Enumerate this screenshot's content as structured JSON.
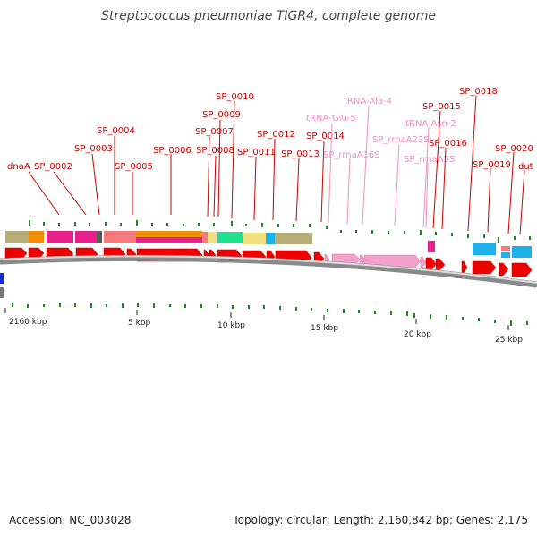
{
  "title": "Streptococcus pneumoniae TIGR4, complete genome",
  "footer": {
    "accession": "Accession: NC_003028",
    "summary": "Topology: circular; Length: 2,160,842 bp; Genes: 2,175"
  },
  "colors": {
    "cds": "#ee0000",
    "rna": "#f4a0c8",
    "cds_label": "#cc0000",
    "rna_label": "#f090c0",
    "backbone": "#a8a8a8",
    "gc_tick": "#1a8a1a"
  },
  "scale_labels": [
    "2160 kbp",
    "5 kbp",
    "10 kbp",
    "15 kbp",
    "20 kbp",
    "25 kbp"
  ],
  "feature_labels": [
    {
      "text": "dnaA",
      "type": "cds"
    },
    {
      "text": "SP_0002",
      "type": "cds"
    },
    {
      "text": "SP_0003",
      "type": "cds"
    },
    {
      "text": "SP_0004",
      "type": "cds"
    },
    {
      "text": "SP_0005",
      "type": "cds"
    },
    {
      "text": "SP_0006",
      "type": "cds"
    },
    {
      "text": "SP_0007",
      "type": "cds"
    },
    {
      "text": "SP_0008",
      "type": "cds"
    },
    {
      "text": "SP_0009",
      "type": "cds"
    },
    {
      "text": "SP_0010",
      "type": "cds"
    },
    {
      "text": "SP_0011",
      "type": "cds"
    },
    {
      "text": "SP_0012",
      "type": "cds"
    },
    {
      "text": "SP_0013",
      "type": "cds"
    },
    {
      "text": "SP_0014",
      "type": "cds"
    },
    {
      "text": "tRNA-Glu-5",
      "type": "rna"
    },
    {
      "text": "SP_rrnaA16S",
      "type": "rna"
    },
    {
      "text": "tRNA-Ala-4",
      "type": "rna"
    },
    {
      "text": "SP_rrnaA23S",
      "type": "rna"
    },
    {
      "text": "tRNA-Asn-2",
      "type": "rna"
    },
    {
      "text": "SP_rrnaA5S",
      "type": "rna"
    },
    {
      "text": "SP_0015",
      "type": "cds"
    },
    {
      "text": "SP_0016",
      "type": "cds"
    },
    {
      "text": "SP_0018",
      "type": "cds"
    },
    {
      "text": "SP_0019",
      "type": "cds"
    },
    {
      "text": "SP_0020",
      "type": "cds"
    },
    {
      "text": "dut",
      "type": "cds"
    }
  ],
  "cog_track_colors": [
    "#b5ae78",
    "#f0900a",
    "#e8208c",
    "#f47c7c",
    "#20e090",
    "#f0e080",
    "#20b0e8",
    "#e8b070",
    "#c060c0"
  ]
}
